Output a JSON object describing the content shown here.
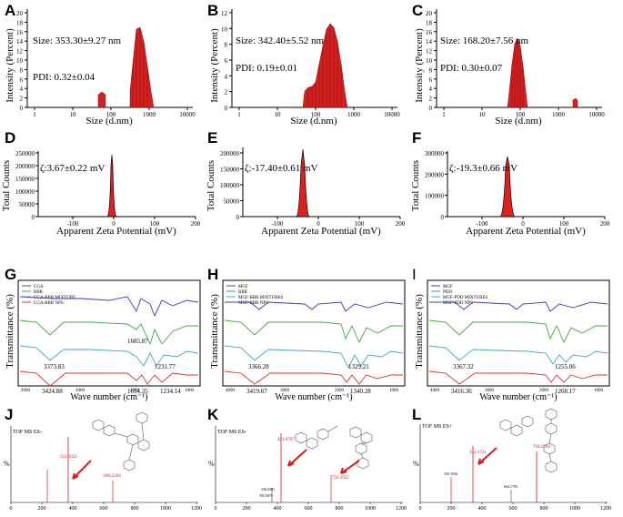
{
  "labels": {
    "A": "A",
    "B": "B",
    "C": "C",
    "D": "D",
    "E": "E",
    "F": "F",
    "G": "G",
    "H": "H",
    "I": "I",
    "J": "J",
    "K": "K",
    "L": "L"
  },
  "dls": {
    "ylabel": "Intensity (Percent)",
    "xlabel": "Size (d.nm)",
    "xticks": [
      "1",
      "10",
      "100",
      "1000",
      "10000"
    ],
    "panels": [
      {
        "id": "A",
        "size_text": "Size: 353.30±9.27 nm",
        "pdi_text": "PDI:  0.32±0.04",
        "yticks": [
          "0",
          "2",
          "4",
          "6",
          "8",
          "10",
          "12",
          "14",
          "16",
          "18",
          "20"
        ],
        "ymax": 20
      },
      {
        "id": "B",
        "size_text": "Size: 342.40±5.52 nm",
        "pdi_text": "PDI:  0.19±0.01",
        "yticks": [
          "0",
          "2",
          "4",
          "6",
          "8",
          "10",
          "12"
        ],
        "ymax": 12
      },
      {
        "id": "C",
        "size_text": "Size: 168.20±7.56 nm",
        "pdi_text": "PDI:  0.30±0.07",
        "yticks": [
          "0",
          "2",
          "4",
          "6",
          "8",
          "10",
          "12",
          "14",
          "16",
          "18",
          "20"
        ],
        "ymax": 20
      }
    ]
  },
  "zeta": {
    "ylabel": "Total Counts",
    "xlabel": "Apparent Zeta Potential (mV)",
    "xticks": [
      "-100",
      "0",
      "100",
      "200"
    ],
    "panels": [
      {
        "id": "D",
        "zeta_text": "ζ:3.67±0.22 mV",
        "yticks": [
          "0",
          "50000",
          "100000",
          "150000",
          "200000",
          "250000"
        ]
      },
      {
        "id": "E",
        "zeta_text": "ζ:-17.40±0.61 mV",
        "yticks": [
          "0",
          "50000",
          "100000",
          "150000",
          "200000"
        ]
      },
      {
        "id": "F",
        "zeta_text": "ζ:-19.3±0.66 mV",
        "yticks": [
          "0",
          "100000",
          "200000",
          "300000"
        ]
      }
    ]
  },
  "ftir": {
    "ylabel": "Transmittance  (%)",
    "xlabel": "Wave number  (cm⁻¹)",
    "xticks": [
      "4000",
      "3000",
      "2000",
      "1000"
    ],
    "panels": [
      {
        "id": "G",
        "legend": [
          "CGA",
          "BBR",
          "CGA-BBR MIXTURE",
          "CGA-BBR NPS"
        ],
        "peaks": [
          "1685.87",
          "3373.83",
          "1231.77",
          "1654.35",
          "1234.14",
          "3424.88"
        ]
      },
      {
        "id": "H",
        "legend": [
          "MGF",
          "BBR",
          "MGF-BBR MIXTURES",
          "MGF-BBR NPS"
        ],
        "peaks": [
          "3366.28",
          "1329.21",
          "3419.67",
          "1340.28"
        ]
      },
      {
        "id": "I",
        "legend": [
          "MGF",
          "PDD",
          "MGF-PDD MIXTURES",
          "MGF-PDD NPS"
        ],
        "peaks": [
          "3367.32",
          "1255.06",
          "3416.36",
          "1268.17"
        ]
      }
    ]
  },
  "ms": {
    "yaxis": "%",
    "xticks": [
      "0",
      "200",
      "400",
      "600",
      "800",
      "1000",
      "1200"
    ],
    "panels": [
      {
        "id": "J",
        "title": "TOF MS ES-",
        "peak_labels": [
          "353.0921",
          "689.2204"
        ]
      },
      {
        "id": "K",
        "title": "TOF MS ES-",
        "peak_labels": [
          "421.0767",
          "756.3922",
          "336.0481",
          "395.0975"
        ]
      },
      {
        "id": "L",
        "title": "TOF MS ES+",
        "peak_labels": [
          "342.1721",
          "704.2594",
          "192.1036",
          "604.1795"
        ]
      }
    ]
  },
  "colors": {
    "bar": "#d42020",
    "blue": "#3b3bbf",
    "green": "#3ea83e",
    "cyan": "#43a8c8",
    "red": "#e03030",
    "arrow": "#d81c1c"
  }
}
